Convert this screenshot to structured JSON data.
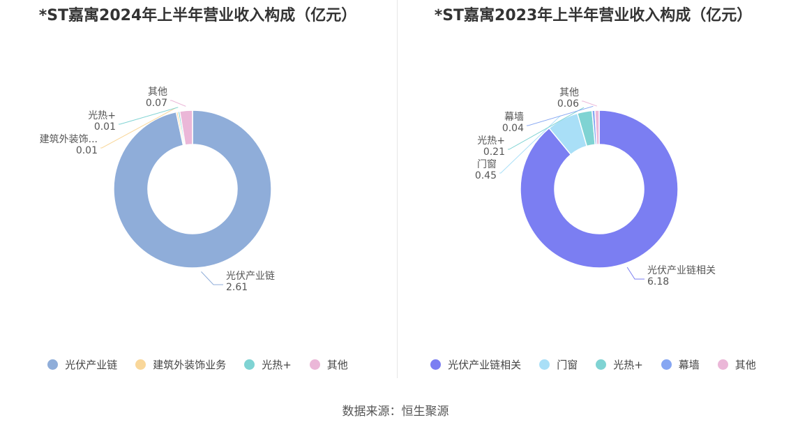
{
  "source": "数据来源：恒生聚源",
  "chart_data": [
    {
      "type": "pie",
      "title": "*ST嘉寓2024年上半年营业收入构成（亿元）",
      "legend_position": "bottom",
      "slices": [
        {
          "name": "光伏产业链",
          "label": "光伏产业链",
          "value": 2.61,
          "color": "#8fadd9"
        },
        {
          "name": "建筑外装饰业务",
          "label": "建筑外装饰...",
          "value": 0.01,
          "color": "#f9d79a"
        },
        {
          "name": "光热+",
          "label": "光热+",
          "value": 0.01,
          "color": "#7fd3d3"
        },
        {
          "name": "其他",
          "label": "其他",
          "value": 0.07,
          "color": "#ebb7d8"
        }
      ]
    },
    {
      "type": "pie",
      "title": "*ST嘉寓2023年上半年营业收入构成（亿元）",
      "legend_position": "bottom",
      "slices": [
        {
          "name": "光伏产业链相关",
          "label": "光伏产业链相关",
          "value": 6.18,
          "color": "#7b7ef2"
        },
        {
          "name": "门窗",
          "label": "门窗",
          "value": 0.45,
          "color": "#a9dff7"
        },
        {
          "name": "光热+",
          "label": "光热+",
          "value": 0.21,
          "color": "#7fd3d3"
        },
        {
          "name": "幕墙",
          "label": "幕墙",
          "value": 0.04,
          "color": "#86a6f2"
        },
        {
          "name": "其他",
          "label": "其他",
          "value": 0.06,
          "color": "#ebb7d8"
        }
      ]
    }
  ]
}
